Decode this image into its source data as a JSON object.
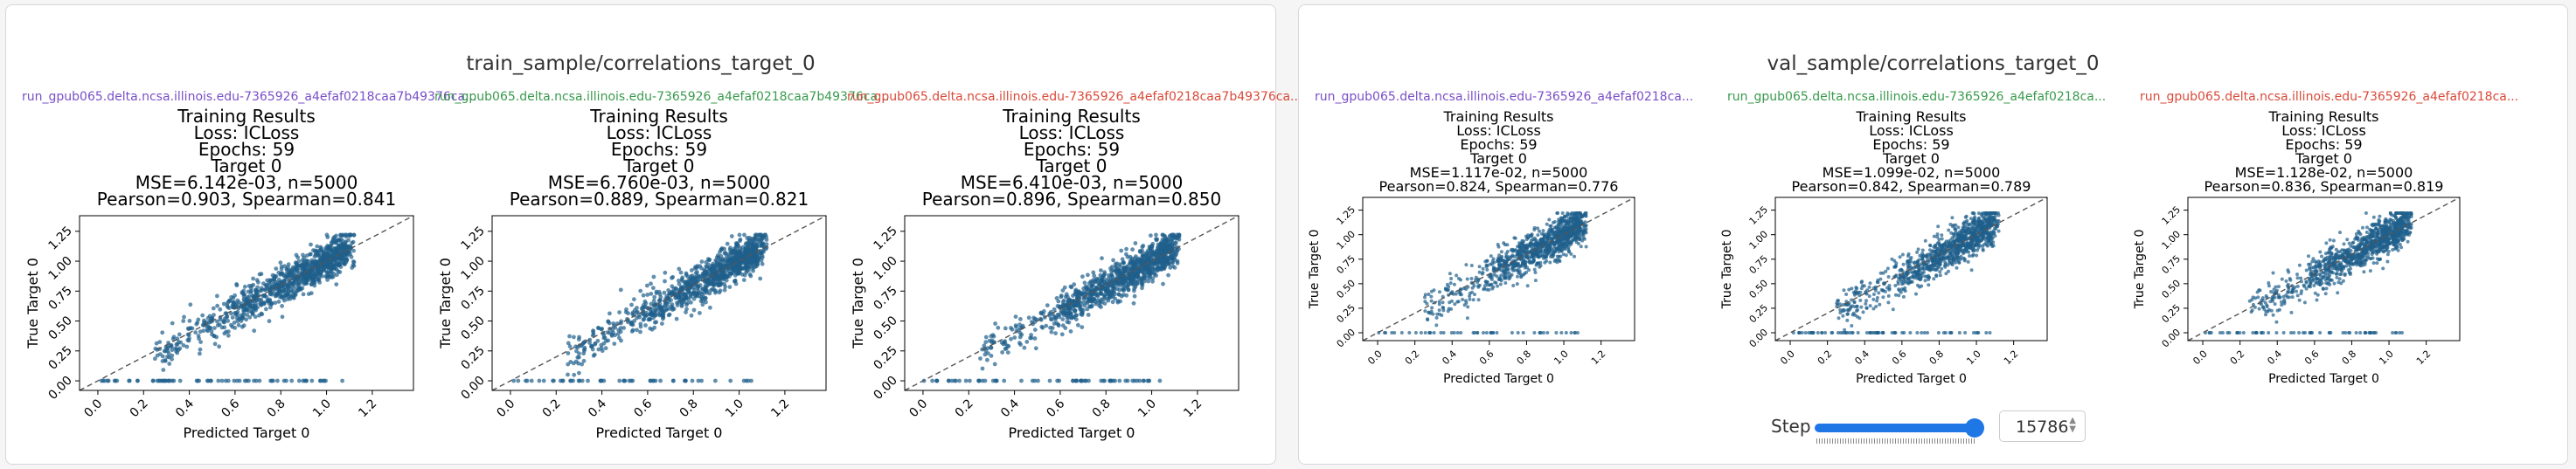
{
  "panels": [
    {
      "title": "train_sample/correlations_target_0"
    },
    {
      "title": "val_sample/correlations_target_0"
    }
  ],
  "step": {
    "label": "Step",
    "value": "15786"
  },
  "chart_data": [
    {
      "type": "scatter",
      "run": "run_gpub065.delta.ncsa.illinois.edu-7365926_a4efaf0218caa7b49376ca...",
      "run_color": "#7a4fc7",
      "title_lines": [
        "Training Results",
        "Loss: ICLoss",
        "Epochs: 59",
        "Target 0",
        "MSE=6.142e-03, n=5000",
        "Pearson=0.903, Spearman=0.841"
      ],
      "xlabel": "Predicted Target 0",
      "ylabel": "True Target 0",
      "xlim": [
        -0.08,
        1.38
      ],
      "ylim": [
        -0.08,
        1.38
      ],
      "xticks": [
        "0.0",
        "0.2",
        "0.4",
        "0.6",
        "0.8",
        "1.0",
        "1.2"
      ],
      "yticks": [
        "0.00",
        "0.25",
        "0.50",
        "0.75",
        "1.00",
        "1.25"
      ],
      "mse": 0.006142,
      "n": 5000,
      "pearson": 0.903,
      "spearman": 0.841,
      "series_color": "#1f5f8b",
      "diagonal": true
    },
    {
      "type": "scatter",
      "run": "run_gpub065.delta.ncsa.illinois.edu-7365926_a4efaf0218caa7b49376ca...",
      "run_color": "#3a9a4d",
      "title_lines": [
        "Training Results",
        "Loss: ICLoss",
        "Epochs: 59",
        "Target 0",
        "MSE=6.760e-03, n=5000",
        "Pearson=0.889, Spearman=0.821"
      ],
      "xlabel": "Predicted Target 0",
      "ylabel": "True Target 0",
      "xlim": [
        -0.08,
        1.38
      ],
      "ylim": [
        -0.08,
        1.38
      ],
      "xticks": [
        "0.0",
        "0.2",
        "0.4",
        "0.6",
        "0.8",
        "1.0",
        "1.2"
      ],
      "yticks": [
        "0.00",
        "0.25",
        "0.50",
        "0.75",
        "1.00",
        "1.25"
      ],
      "mse": 0.00676,
      "n": 5000,
      "pearson": 0.889,
      "spearman": 0.821,
      "series_color": "#1f5f8b",
      "diagonal": true
    },
    {
      "type": "scatter",
      "run": "run_gpub065.delta.ncsa.illinois.edu-7365926_a4efaf0218caa7b49376ca...",
      "run_color": "#d94a3a",
      "title_lines": [
        "Training Results",
        "Loss: ICLoss",
        "Epochs: 59",
        "Target 0",
        "MSE=6.410e-03, n=5000",
        "Pearson=0.896, Spearman=0.850"
      ],
      "xlabel": "Predicted Target 0",
      "ylabel": "True Target 0",
      "xlim": [
        -0.08,
        1.38
      ],
      "ylim": [
        -0.08,
        1.38
      ],
      "xticks": [
        "0.0",
        "0.2",
        "0.4",
        "0.6",
        "0.8",
        "1.0",
        "1.2"
      ],
      "yticks": [
        "0.00",
        "0.25",
        "0.50",
        "0.75",
        "1.00",
        "1.25"
      ],
      "mse": 0.00641,
      "n": 5000,
      "pearson": 0.896,
      "spearman": 0.85,
      "series_color": "#1f5f8b",
      "diagonal": true
    },
    {
      "type": "scatter",
      "run": "run_gpub065.delta.ncsa.illinois.edu-7365926_a4efaf0218ca...",
      "run_color": "#7a4fc7",
      "title_lines": [
        "Training Results",
        "Loss: ICLoss",
        "Epochs: 59",
        "Target 0",
        "MSE=1.117e-02, n=5000",
        "Pearson=0.824, Spearman=0.776"
      ],
      "xlabel": "Predicted Target 0",
      "ylabel": "True Target 0",
      "xlim": [
        -0.08,
        1.38
      ],
      "ylim": [
        -0.08,
        1.38
      ],
      "xticks": [
        "0.0",
        "0.2",
        "0.4",
        "0.6",
        "0.8",
        "1.0",
        "1.2"
      ],
      "yticks": [
        "0.00",
        "0.25",
        "0.50",
        "0.75",
        "1.00",
        "1.25"
      ],
      "mse": 0.01117,
      "n": 5000,
      "pearson": 0.824,
      "spearman": 0.776,
      "series_color": "#1f5f8b",
      "diagonal": true
    },
    {
      "type": "scatter",
      "run": "run_gpub065.delta.ncsa.illinois.edu-7365926_a4efaf0218ca...",
      "run_color": "#3a9a4d",
      "title_lines": [
        "Training Results",
        "Loss: ICLoss",
        "Epochs: 59",
        "Target 0",
        "MSE=1.099e-02, n=5000",
        "Pearson=0.842, Spearman=0.789"
      ],
      "xlabel": "Predicted Target 0",
      "ylabel": "True Target 0",
      "xlim": [
        -0.08,
        1.38
      ],
      "ylim": [
        -0.08,
        1.38
      ],
      "xticks": [
        "0.0",
        "0.2",
        "0.4",
        "0.6",
        "0.8",
        "1.0",
        "1.2"
      ],
      "yticks": [
        "0.00",
        "0.25",
        "0.50",
        "0.75",
        "1.00",
        "1.25"
      ],
      "mse": 0.01099,
      "n": 5000,
      "pearson": 0.842,
      "spearman": 0.789,
      "series_color": "#1f5f8b",
      "diagonal": true
    },
    {
      "type": "scatter",
      "run": "run_gpub065.delta.ncsa.illinois.edu-7365926_a4efaf0218ca...",
      "run_color": "#d94a3a",
      "title_lines": [
        "Training Results",
        "Loss: ICLoss",
        "Epochs: 59",
        "Target 0",
        "MSE=1.128e-02, n=5000",
        "Pearson=0.836, Spearman=0.819"
      ],
      "xlabel": "Predicted Target 0",
      "ylabel": "True Target 0",
      "xlim": [
        -0.08,
        1.38
      ],
      "ylim": [
        -0.08,
        1.38
      ],
      "xticks": [
        "0.0",
        "0.2",
        "0.4",
        "0.6",
        "0.8",
        "1.0",
        "1.2"
      ],
      "yticks": [
        "0.00",
        "0.25",
        "0.50",
        "0.75",
        "1.00",
        "1.25"
      ],
      "mse": 0.01128,
      "n": 5000,
      "pearson": 0.836,
      "spearman": 0.819,
      "series_color": "#1f5f8b",
      "diagonal": true
    }
  ]
}
